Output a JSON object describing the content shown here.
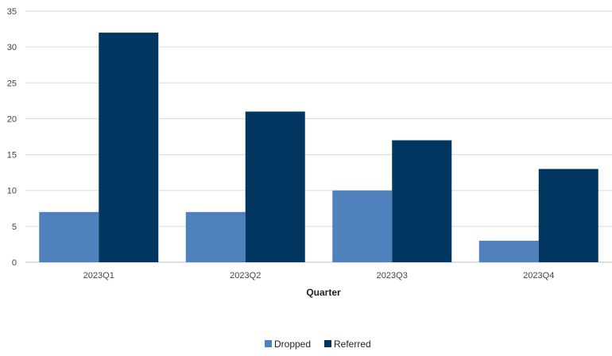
{
  "chart_data": {
    "type": "bar",
    "title": "",
    "xlabel": "Quarter",
    "ylabel": "",
    "categories": [
      "2023Q1",
      "2023Q2",
      "2023Q3",
      "2023Q4"
    ],
    "series": [
      {
        "name": "Dropped",
        "values": [
          7,
          7,
          10,
          3
        ],
        "color": "#4f81bd"
      },
      {
        "name": "Referred",
        "values": [
          32,
          21,
          17,
          13
        ],
        "color": "#003660"
      }
    ],
    "ylim": [
      0,
      35
    ],
    "yticks": [
      "0",
      "5",
      "10",
      "15",
      "20",
      "25",
      "30",
      "35"
    ],
    "grid": true,
    "legend_position": "bottom"
  }
}
